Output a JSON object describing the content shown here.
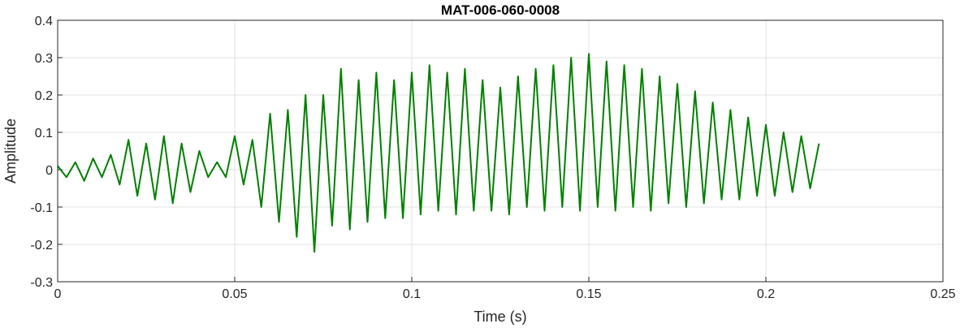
{
  "chart_data": {
    "type": "line",
    "title": "MAT-006-060-0008",
    "xlabel": "Time (s)",
    "ylabel": "Amplitude",
    "xlim": [
      0,
      0.25
    ],
    "ylim": [
      -0.3,
      0.4
    ],
    "xticks": [
      0,
      0.05,
      0.1,
      0.15,
      0.2,
      0.25
    ],
    "xtick_labels": [
      "0",
      "0.05",
      "0.1",
      "0.15",
      "0.2",
      "0.25"
    ],
    "yticks": [
      -0.3,
      -0.2,
      -0.1,
      0,
      0.1,
      0.2,
      0.3,
      0.4
    ],
    "ytick_labels": [
      "-0.3",
      "-0.2",
      "-0.1",
      "0",
      "0.1",
      "0.2",
      "0.3",
      "0.4"
    ],
    "grid": true,
    "line_color": "#008000",
    "series": [
      {
        "x": [
          0,
          0.0025,
          0.005,
          0.0075,
          0.01,
          0.0125,
          0.015,
          0.0175,
          0.02,
          0.0225,
          0.025,
          0.0275,
          0.03,
          0.0325,
          0.035,
          0.0375,
          0.04,
          0.0425,
          0.045,
          0.0475,
          0.05,
          0.0525,
          0.055,
          0.0575,
          0.06,
          0.0625,
          0.065,
          0.0675,
          0.07,
          0.0725,
          0.075,
          0.0775,
          0.08,
          0.0825,
          0.085,
          0.0875,
          0.09,
          0.0925,
          0.095,
          0.0975,
          0.1,
          0.1025,
          0.105,
          0.1075,
          0.11,
          0.1125,
          0.115,
          0.1175,
          0.12,
          0.1225,
          0.125,
          0.1275,
          0.13,
          0.1325,
          0.135,
          0.1375,
          0.14,
          0.1425,
          0.145,
          0.1475,
          0.15,
          0.1525,
          0.155,
          0.1575,
          0.16,
          0.1625,
          0.165,
          0.1675,
          0.17,
          0.1725,
          0.175,
          0.1775,
          0.18,
          0.1825,
          0.185,
          0.1875,
          0.19,
          0.1925,
          0.195,
          0.1975,
          0.2,
          0.2025,
          0.205,
          0.2075,
          0.21,
          0.2125,
          0.215
        ],
        "y": [
          0.01,
          -0.02,
          0.02,
          -0.03,
          0.03,
          -0.02,
          0.04,
          -0.04,
          0.08,
          -0.07,
          0.07,
          -0.08,
          0.09,
          -0.09,
          0.07,
          -0.06,
          0.05,
          -0.02,
          0.02,
          -0.02,
          0.09,
          -0.04,
          0.08,
          -0.1,
          0.15,
          -0.14,
          0.16,
          -0.18,
          0.2,
          -0.22,
          0.2,
          -0.15,
          0.27,
          -0.16,
          0.24,
          -0.14,
          0.26,
          -0.13,
          0.24,
          -0.13,
          0.26,
          -0.12,
          0.28,
          -0.11,
          0.26,
          -0.12,
          0.27,
          -0.11,
          0.24,
          -0.11,
          0.22,
          -0.12,
          0.25,
          -0.1,
          0.27,
          -0.11,
          0.28,
          -0.1,
          0.3,
          -0.11,
          0.31,
          -0.1,
          0.29,
          -0.11,
          0.28,
          -0.1,
          0.27,
          -0.11,
          0.25,
          -0.09,
          0.23,
          -0.1,
          0.21,
          -0.09,
          0.18,
          -0.08,
          0.16,
          -0.08,
          0.14,
          -0.07,
          0.12,
          -0.07,
          0.1,
          -0.06,
          0.09,
          -0.05,
          0.07
        ]
      }
    ]
  }
}
